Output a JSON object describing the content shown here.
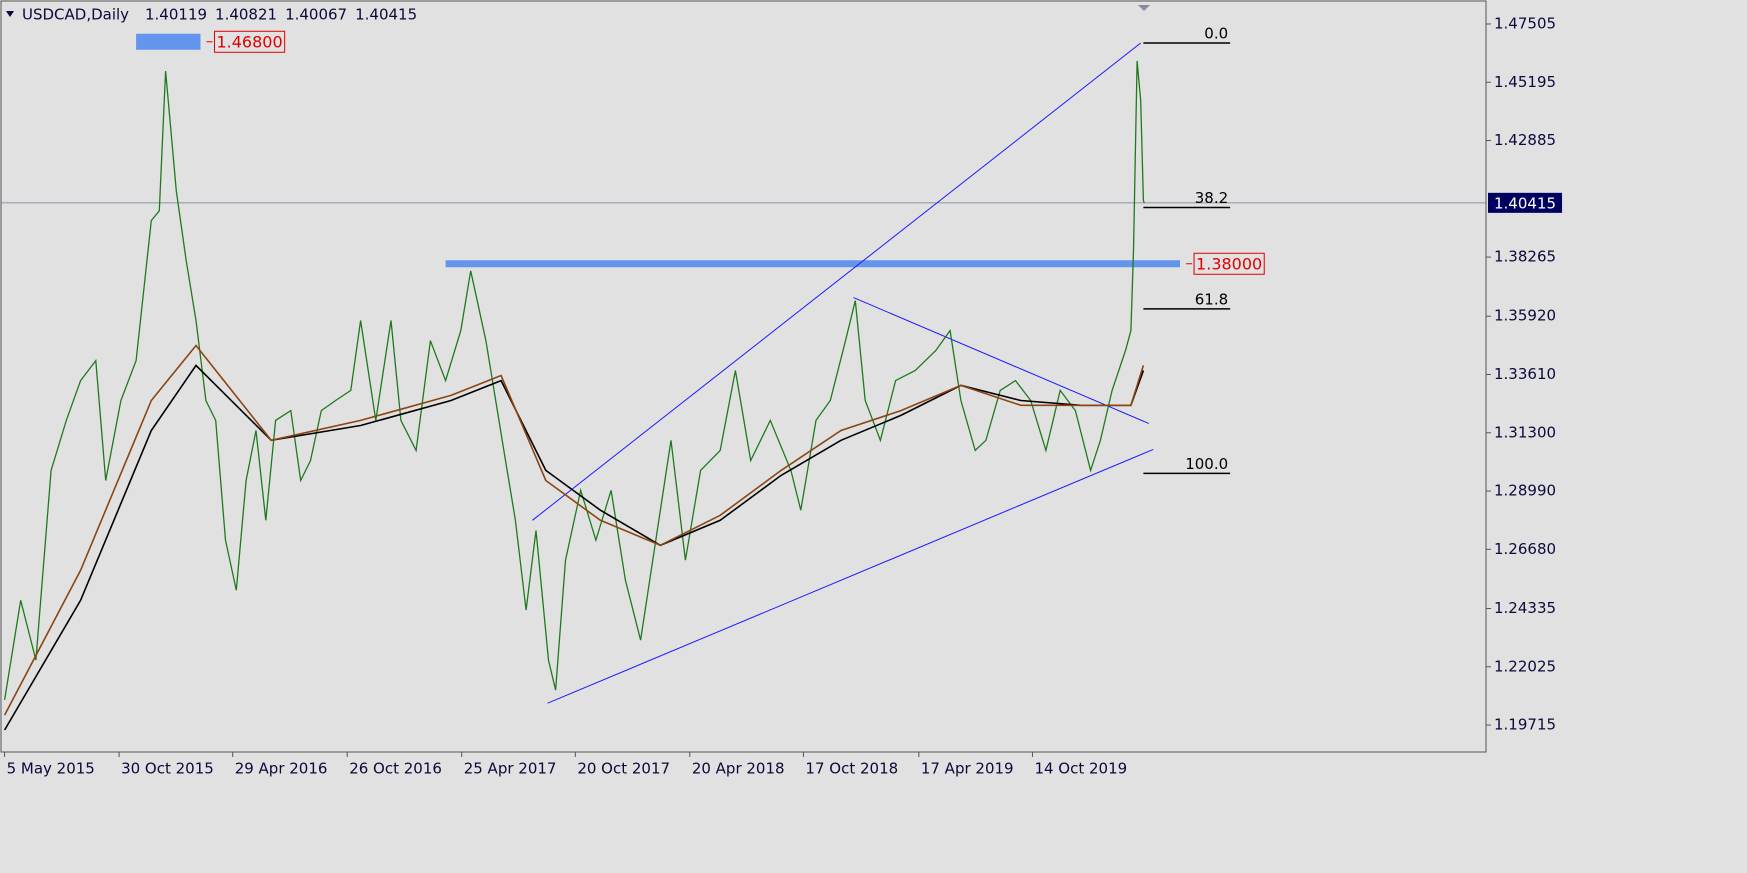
{
  "chart_data": {
    "type": "line",
    "title": "USDCAD,Daily",
    "ohlc": [
      1.40119,
      1.40821,
      1.40067,
      1.40415
    ],
    "xlim": [
      0,
      1660
    ],
    "ylim": [
      1.18646,
      1.48416
    ],
    "xticks": [
      {
        "value": 4,
        "label": "5 May 2015"
      },
      {
        "value": 132,
        "label": "30 Oct 2015"
      },
      {
        "value": 259,
        "label": "29 Apr 2016"
      },
      {
        "value": 387,
        "label": "26 Oct 2016"
      },
      {
        "value": 515,
        "label": "25 Apr 2017"
      },
      {
        "value": 642,
        "label": "20 Oct 2017"
      },
      {
        "value": 770,
        "label": "20 Apr 2018"
      },
      {
        "value": 897,
        "label": "17 Oct 2018"
      },
      {
        "value": 1026,
        "label": "17 Apr 2019"
      },
      {
        "value": 1153,
        "label": "14 Oct 2019"
      }
    ],
    "yticks": [
      1.47505,
      1.45195,
      1.42885,
      1.38265,
      {
        "value": 1.3592,
        "label": "1.35920"
      },
      {
        "value": 1.3361,
        "label": "1.33610"
      },
      {
        "value": 1.313,
        "label": "1.31300"
      },
      {
        "value": 1.2899,
        "label": "1.28990"
      },
      {
        "value": 1.2668,
        "label": "1.26680"
      },
      1.24335,
      1.22025,
      1.19715
    ],
    "last_price": 1.40415,
    "series": [
      {
        "color": "#1f7a1f",
        "x": [
          4,
          22,
          39,
          56,
          73,
          89,
          106,
          117,
          134,
          151,
          168,
          177,
          184,
          196,
          207,
          218,
          229,
          240,
          251,
          263,
          274,
          285,
          296,
          307,
          324,
          335,
          346,
          358,
          374,
          391,
          402,
          419,
          436,
          447,
          464,
          480,
          497,
          514,
          525,
          542,
          553,
          564,
          575,
          587,
          598,
          612,
          620,
          631,
          648,
          665,
          682,
          698,
          715,
          732,
          749,
          765,
          782,
          804,
          821,
          838,
          860,
          883,
          894,
          911,
          927,
          944,
          955,
          966,
          983,
          1000,
          1022,
          1045,
          1061,
          1073,
          1089,
          1101,
          1117,
          1134,
          1151,
          1168,
          1184,
          1201,
          1218,
          1229,
          1242,
          1257,
          1263,
          1266,
          1270,
          1274,
          1277,
          1278
        ],
        "values": [
          1.2071,
          1.2466,
          1.2229,
          1.2981,
          1.3179,
          1.3337,
          1.3416,
          1.2941,
          1.3258,
          1.3416,
          1.3971,
          1.401,
          1.4564,
          1.4089,
          1.3812,
          1.3575,
          1.3258,
          1.3179,
          1.2704,
          1.2506,
          1.2941,
          1.3139,
          1.2783,
          1.3179,
          1.3218,
          1.2941,
          1.302,
          1.3218,
          1.3258,
          1.3298,
          1.3575,
          1.3179,
          1.3575,
          1.3179,
          1.306,
          1.3495,
          1.3337,
          1.3535,
          1.3772,
          1.3495,
          1.3258,
          1.302,
          1.2783,
          1.2427,
          1.2743,
          1.2229,
          1.211,
          1.2625,
          1.2902,
          1.2704,
          1.2902,
          1.2546,
          1.2308,
          1.2704,
          1.31,
          1.2625,
          1.2981,
          1.306,
          1.3377,
          1.302,
          1.3179,
          1.2981,
          1.2823,
          1.3179,
          1.3258,
          1.3495,
          1.3654,
          1.3258,
          1.31,
          1.3337,
          1.3377,
          1.3456,
          1.3535,
          1.3258,
          1.306,
          1.31,
          1.3298,
          1.3337,
          1.3258,
          1.306,
          1.3298,
          1.3218,
          1.2981,
          1.31,
          1.3298,
          1.3456,
          1.3535,
          1.3852,
          1.4604,
          1.4446,
          1.405,
          1.40415
        ]
      },
      {
        "color": "#000000",
        "x": [
          4,
          89,
          168,
          218,
          302,
          402,
          503,
          559,
          609,
          670,
          737,
          804,
          872,
          939,
          1006,
          1073,
          1140,
          1207,
          1263,
          1277
        ],
        "values": [
          1.1952,
          1.2466,
          1.3139,
          1.3397,
          1.31,
          1.3159,
          1.3258,
          1.3337,
          1.2981,
          1.2823,
          1.2684,
          1.2783,
          1.2961,
          1.31,
          1.3199,
          1.3318,
          1.3258,
          1.3239,
          1.3239,
          1.3377
        ]
      },
      {
        "color": "#8b4513",
        "x": [
          4,
          89,
          168,
          218,
          302,
          402,
          503,
          559,
          609,
          670,
          737,
          804,
          872,
          939,
          1006,
          1073,
          1140,
          1207,
          1263,
          1277
        ],
        "values": [
          1.2011,
          1.2585,
          1.3258,
          1.3476,
          1.31,
          1.3179,
          1.3278,
          1.3357,
          1.2941,
          1.2783,
          1.2684,
          1.2803,
          1.2981,
          1.3139,
          1.3218,
          1.3318,
          1.3239,
          1.3239,
          1.3239,
          1.3397
        ]
      }
    ],
    "trendlines": [
      {
        "x1": 594,
        "y1": 1.2783,
        "x2": 1274,
        "y2": 1.4675
      },
      {
        "x1": 611,
        "y1": 1.2058,
        "x2": 1288,
        "y2": 1.3064
      },
      {
        "x1": 953,
        "y1": 1.3666,
        "x2": 1283,
        "y2": 1.3167
      }
    ],
    "levels": [
      {
        "value": 1.38,
        "label": "1.38000",
        "x1": 497,
        "x2": 1318
      },
      {
        "value": 1.468,
        "label": "1.46800",
        "x1": 151,
        "x2": 223
      }
    ],
    "fibonacci": {
      "x1": 1277,
      "x2": 1374,
      "levels": [
        {
          "label": "0.0",
          "price": 1.4675
        },
        {
          "label": "38.2",
          "price": 1.4023
        },
        {
          "label": "61.8",
          "price": 1.3621
        },
        {
          "label": "100.0",
          "price": 1.2969
        }
      ]
    }
  }
}
